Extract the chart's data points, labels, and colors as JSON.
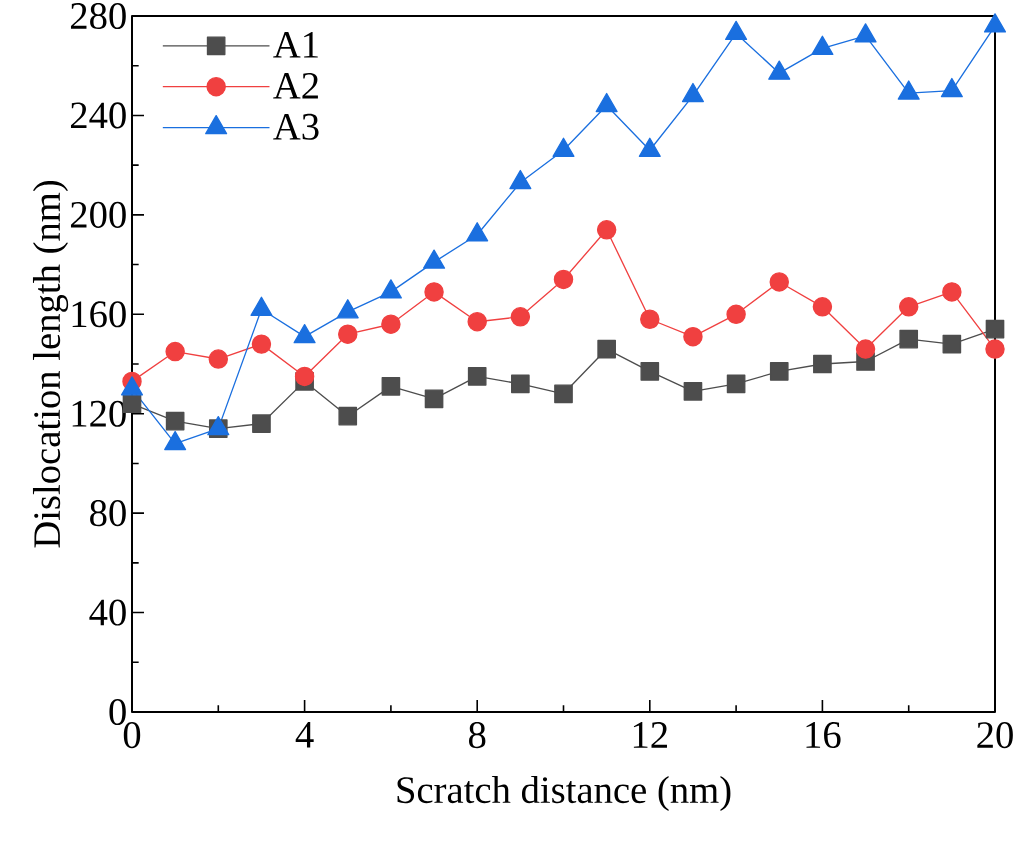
{
  "chart_data": {
    "type": "line",
    "xlabel": "Scratch distance (nm)",
    "ylabel": "Dislocation length (nm)",
    "x": [
      0,
      1,
      2,
      3,
      4,
      5,
      6,
      7,
      8,
      9,
      10,
      11,
      12,
      13,
      14,
      15,
      16,
      17,
      18,
      19,
      20
    ],
    "series": [
      {
        "name": "A1",
        "color": "#4d4d4d",
        "marker": "square",
        "values": [
          124,
          117,
          114,
          116,
          133,
          119,
          131,
          126,
          135,
          132,
          128,
          146,
          137,
          129,
          132,
          137,
          140,
          141,
          150,
          148,
          154
        ]
      },
      {
        "name": "A2",
        "color": "#f04040",
        "marker": "circle",
        "values": [
          133,
          145,
          142,
          148,
          135,
          152,
          156,
          169,
          157,
          159,
          174,
          194,
          158,
          151,
          160,
          173,
          163,
          146,
          163,
          169,
          146
        ]
      },
      {
        "name": "A3",
        "color": "#1a6fdf",
        "marker": "triangle",
        "values": [
          130,
          108,
          114,
          162,
          151,
          161,
          169,
          181,
          192,
          213,
          226,
          244,
          226,
          248,
          273,
          257,
          267,
          272,
          249,
          250,
          276
        ]
      }
    ],
    "xlim": [
      0,
      20
    ],
    "xticks": [
      0,
      4,
      8,
      12,
      16,
      20
    ],
    "ylim": [
      0,
      280
    ],
    "yticks": [
      0,
      40,
      80,
      120,
      160,
      200,
      240,
      280
    ],
    "legend": "top left",
    "grid": false,
    "line_style": "solid"
  }
}
